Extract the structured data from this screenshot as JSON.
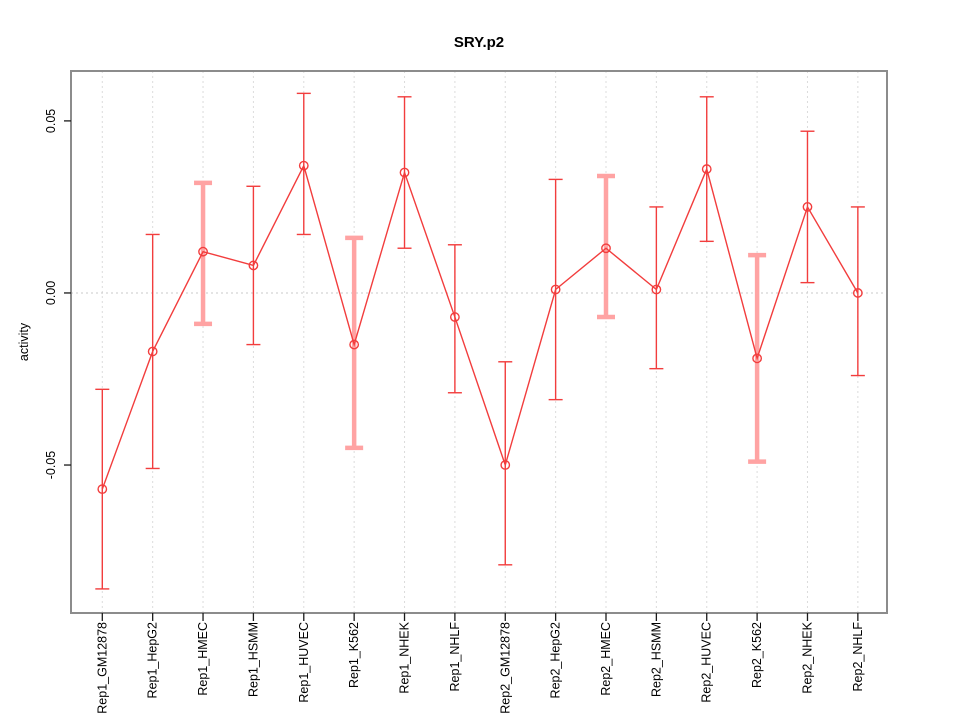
{
  "chart_data": {
    "type": "line",
    "title": "SRY.p2",
    "xlabel": "",
    "ylabel": "activity",
    "legend": "none",
    "grid": "dotted vertical line at every category; dotted horizontal line at y=0",
    "marker": "open-circle",
    "categories": [
      "Rep1_GM12878",
      "Rep1_HepG2",
      "Rep1_HMEC",
      "Rep1_HSMM",
      "Rep1_HUVEC",
      "Rep1_K562",
      "Rep1_NHEK",
      "Rep1_NHLF",
      "Rep2_GM12878",
      "Rep2_HepG2",
      "Rep2_HMEC",
      "Rep2_HSMM",
      "Rep2_HUVEC",
      "Rep2_K562",
      "Rep2_NHEK",
      "Rep2_NHLF"
    ],
    "series": [
      {
        "name": "activity",
        "values": [
          -0.057,
          -0.017,
          0.012,
          0.008,
          0.037,
          -0.015,
          0.035,
          -0.007,
          -0.05,
          0.001,
          0.013,
          0.001,
          0.036,
          -0.019,
          0.025,
          0.0
        ]
      }
    ],
    "error_low": [
      -0.086,
      -0.051,
      -0.009,
      -0.015,
      0.017,
      -0.045,
      0.013,
      -0.029,
      -0.079,
      -0.031,
      -0.007,
      -0.022,
      0.015,
      -0.049,
      0.003,
      -0.024
    ],
    "error_high": [
      -0.028,
      0.017,
      0.032,
      0.031,
      0.058,
      0.016,
      0.057,
      0.014,
      -0.02,
      0.033,
      0.034,
      0.025,
      0.057,
      0.011,
      0.047,
      0.025
    ],
    "bar_style": [
      "thin",
      "thin",
      "thick",
      "thin",
      "thin",
      "thick",
      "thin",
      "thin",
      "thin",
      "thin",
      "thick",
      "thin",
      "thin",
      "thick",
      "thin",
      "thin"
    ],
    "yticks": {
      "values": [
        0.05,
        0.0,
        -0.05
      ],
      "labels": [
        "0.05",
        "0.00",
        "-0.05"
      ]
    },
    "ylim": [
      -0.093,
      0.0645
    ],
    "colors": {
      "series": "#f23d3d",
      "emphasis_bar": "#ffa3a3",
      "grid": "#dcdcdc",
      "zero_line": "#c9c9c9",
      "border": "#8c8c8c",
      "text": "#000000"
    }
  }
}
